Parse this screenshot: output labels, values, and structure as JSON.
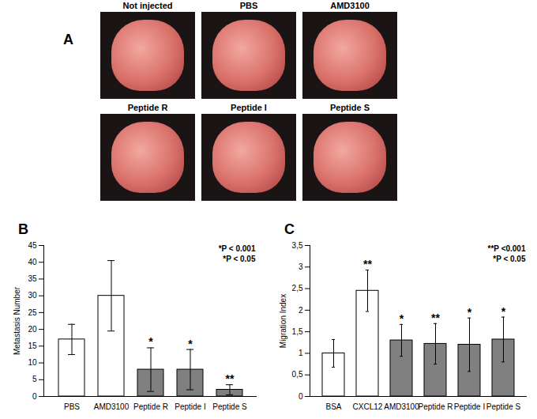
{
  "chart_data": [
    {
      "type": "images",
      "title": "A",
      "categories": [
        "Not injected",
        "PBS",
        "AMD3100",
        "Peptide R",
        "Peptide I",
        "Peptide S"
      ]
    },
    {
      "type": "bar",
      "title": "B",
      "y_label": "Metastasis Number",
      "categories": [
        "PBS",
        "AMD3100",
        "Peptide R",
        "Peptide I",
        "Peptide S"
      ],
      "values": [
        17,
        30,
        8,
        8,
        2
      ],
      "errors": [
        4.5,
        10.5,
        6.5,
        6,
        1.5
      ],
      "significance": [
        null,
        null,
        "*",
        "*",
        "**"
      ],
      "colors": [
        "#ffffff",
        "#ffffff",
        "#808080",
        "#808080",
        "#808080"
      ],
      "annotations": [
        "*P < 0.001",
        "*P < 0.05"
      ],
      "ylim": [
        0,
        45
      ],
      "yticks": [
        0,
        5,
        10,
        15,
        20,
        25,
        30,
        35,
        40,
        45
      ],
      "grid": false
    },
    {
      "type": "bar",
      "title": "C",
      "y_label": "Migration Index",
      "categories": [
        "BSA",
        "CXCL12",
        "AMD3100",
        "Peptide R",
        "Peptide I",
        "Peptide S"
      ],
      "values": [
        1,
        2.45,
        1.3,
        1.22,
        1.2,
        1.32
      ],
      "errors": [
        0.32,
        0.48,
        0.37,
        0.47,
        0.62,
        0.52
      ],
      "significance": [
        null,
        "**",
        "*",
        "**",
        "*",
        "*"
      ],
      "colors": [
        "#ffffff",
        "#ffffff",
        "#808080",
        "#808080",
        "#808080",
        "#808080"
      ],
      "annotations": [
        "**P <0.001",
        "*P < 0.05"
      ],
      "ylim": [
        0,
        3.5
      ],
      "yticks": [
        0,
        {
          "value": 0.5,
          "label": "0,5"
        },
        1,
        {
          "value": 1.5,
          "label": "1,5"
        },
        2,
        {
          "value": 2.5,
          "label": "2,5"
        },
        3,
        {
          "value": 3.5,
          "label": "3,5"
        }
      ],
      "grid": false
    }
  ]
}
